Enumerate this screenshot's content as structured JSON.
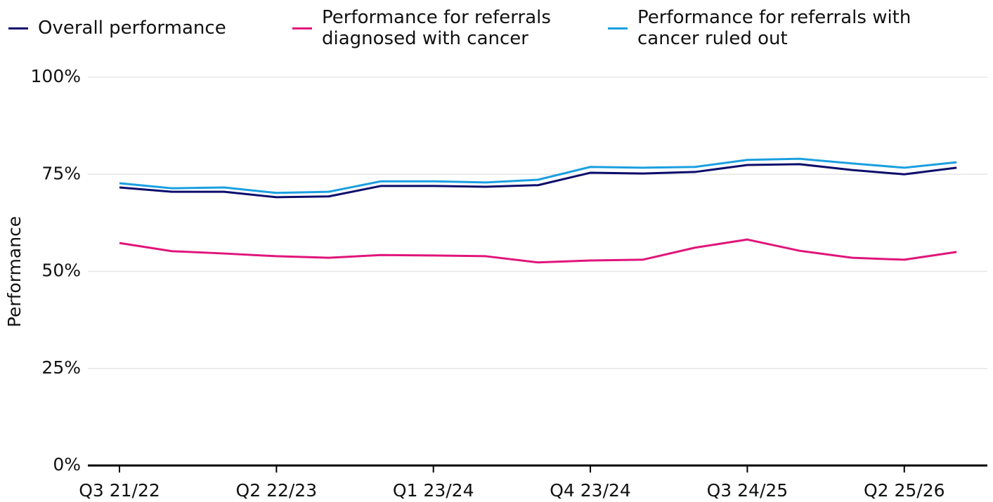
{
  "chart_data": {
    "type": "line",
    "y_label": "Performance",
    "categories": [
      "Q3 21/22",
      null,
      null,
      "Q2 22/23",
      null,
      null,
      "Q1 23/24",
      null,
      null,
      "Q4 23/24",
      null,
      null,
      "Q3 24/25",
      null,
      null,
      "Q2 25/26",
      null
    ],
    "series": [
      {
        "name": "Overall performance",
        "color": "#0b0c6b",
        "values": [
          71.6,
          70.5,
          70.5,
          69.1,
          69.3,
          72.0,
          72.0,
          71.8,
          72.2,
          75.4,
          75.2,
          75.6,
          77.4,
          77.6,
          76.1,
          75.0,
          76.7
        ]
      },
      {
        "name": "Performance for referrals diagnosed with cancer",
        "color": "#e0157a",
        "values": [
          57.3,
          55.2,
          54.6,
          53.9,
          53.5,
          54.2,
          54.1,
          53.9,
          52.3,
          52.8,
          53.0,
          56.1,
          58.2,
          55.3,
          53.5,
          53.0,
          55.0
        ]
      },
      {
        "name": "Performance for referrals with cancer ruled out",
        "color": "#1a9fe0",
        "values": [
          72.7,
          71.4,
          71.6,
          70.2,
          70.5,
          73.2,
          73.2,
          72.9,
          73.6,
          76.9,
          76.7,
          76.9,
          78.7,
          79.0,
          77.8,
          76.7,
          78.1
        ]
      }
    ],
    "ylim": [
      0,
      100
    ],
    "yticks": [
      {
        "value": 0,
        "label": "0%"
      },
      {
        "value": 25,
        "label": "25%"
      },
      {
        "value": 50,
        "label": "50%"
      },
      {
        "value": 75,
        "label": "75%"
      },
      {
        "value": 100,
        "label": "100%"
      }
    ],
    "grid": true
  }
}
